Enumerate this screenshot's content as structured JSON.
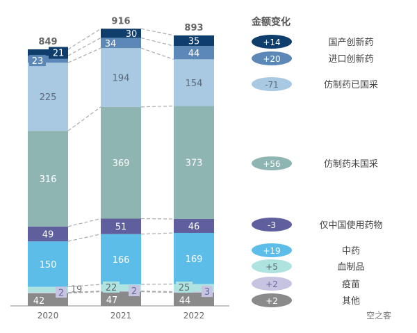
{
  "chart_data": {
    "type": "bar",
    "stacked": true,
    "categories": [
      "2020",
      "2021",
      "2022"
    ],
    "totals": [
      849,
      916,
      893
    ],
    "series": [
      {
        "name": "其他",
        "values": [
          42,
          47,
          44
        ],
        "color": "#8a8a8a",
        "change": "+2",
        "text": "#ffffff"
      },
      {
        "name": "疫苗",
        "values": [
          2,
          2,
          3
        ],
        "color": "#c7c4e2",
        "change": "+2",
        "text": "#6a6aa0"
      },
      {
        "name": "血制品",
        "values": [
          19,
          22,
          25
        ],
        "color": "#aee3e0",
        "change": "+5",
        "text": "#5a6a6a"
      },
      {
        "name": "中药",
        "values": [
          150,
          166,
          169
        ],
        "color": "#5dbde9",
        "change": "+19",
        "text": "#ffffff"
      },
      {
        "name": "仅中国使用药物",
        "values": [
          49,
          51,
          46
        ],
        "color": "#5e5f9c",
        "change": "-3",
        "text": "#ffffff"
      },
      {
        "name": "仿制药未国采",
        "values": [
          316,
          369,
          373
        ],
        "color": "#8fb5b2",
        "change": "+56",
        "text": "#ffffff"
      },
      {
        "name": "仿制药已国采",
        "values": [
          225,
          194,
          154
        ],
        "color": "#a9c9e3",
        "change": "-71",
        "text": "#5a6a7a"
      },
      {
        "name": "进口创新药",
        "values": [
          23,
          34,
          44
        ],
        "color": "#5b88b6",
        "change": "+20",
        "text": "#ffffff"
      },
      {
        "name": "国产创新药",
        "values": [
          21,
          30,
          35
        ],
        "color": "#0f3e6c",
        "change": "+14",
        "text": "#ffffff"
      }
    ],
    "legend_title": "金额变化",
    "legend_placement": "right",
    "xlabel": "",
    "ylabel": "",
    "watermark": "空之客"
  }
}
